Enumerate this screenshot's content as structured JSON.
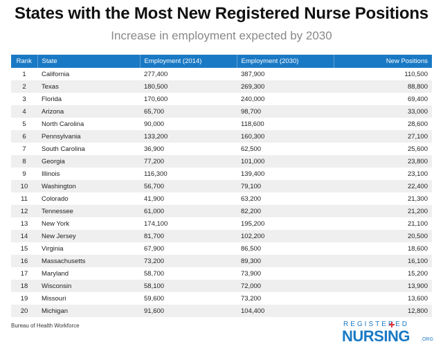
{
  "chart_data": {
    "type": "table",
    "title": "States with the Most New Registered Nurse Positions",
    "subtitle": "Increase in employment expected by 2030",
    "columns": [
      "Rank",
      "State",
      "Employment (2014)",
      "Employment (2030)",
      "New Positions"
    ],
    "rows": [
      [
        "1",
        "California",
        "277,400",
        "387,900",
        "110,500"
      ],
      [
        "2",
        "Texas",
        "180,500",
        "269,300",
        "88,800"
      ],
      [
        "3",
        "Florida",
        "170,600",
        "240,000",
        "69,400"
      ],
      [
        "4",
        "Arizona",
        "65,700",
        "98,700",
        "33,000"
      ],
      [
        "5",
        "North Carolina",
        "90,000",
        "118,600",
        "28,600"
      ],
      [
        "6",
        "Pennsylvania",
        "133,200",
        "160,300",
        "27,100"
      ],
      [
        "7",
        "South Carolina",
        "36,900",
        "62,500",
        "25,600"
      ],
      [
        "8",
        "Georgia",
        "77,200",
        "101,000",
        "23,800"
      ],
      [
        "9",
        "Illinois",
        "116,300",
        "139,400",
        "23,100"
      ],
      [
        "10",
        "Washington",
        "56,700",
        "79,100",
        "22,400"
      ],
      [
        "11",
        "Colorado",
        "41,900",
        "63,200",
        "21,300"
      ],
      [
        "12",
        "Tennessee",
        "61,000",
        "82,200",
        "21,200"
      ],
      [
        "13",
        "New York",
        "174,100",
        "195,200",
        "21,100"
      ],
      [
        "14",
        "New Jersey",
        "81,700",
        "102,200",
        "20,500"
      ],
      [
        "15",
        "Virginia",
        "67,900",
        "86,500",
        "18,600"
      ],
      [
        "16",
        "Massachusetts",
        "73,200",
        "89,300",
        "16,100"
      ],
      [
        "17",
        "Maryland",
        "58,700",
        "73,900",
        "15,200"
      ],
      [
        "18",
        "Wisconsin",
        "58,100",
        "72,000",
        "13,900"
      ],
      [
        "19",
        "Missouri",
        "59,600",
        "73,200",
        "13,600"
      ],
      [
        "20",
        "Michigan",
        "91,600",
        "104,400",
        "12,800"
      ]
    ],
    "source": "Bureau of Health Workforce",
    "header_color": "#1a79c4",
    "stripe_color": "#efefef"
  },
  "logo": {
    "top": "REGISTERED",
    "main": "NURSING",
    "suffix": ".ORG",
    "color": "#1a79c4",
    "accent": "#e0323c"
  }
}
